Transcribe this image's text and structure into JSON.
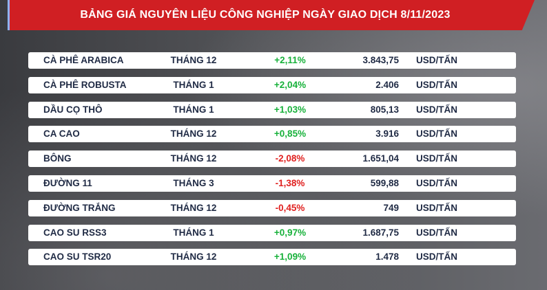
{
  "header": {
    "title": "BẢNG GIÁ NGUYÊN LIỆU CÔNG NGHIỆP NGÀY GIAO DỊCH 8/11/2023"
  },
  "colors": {
    "banner": "#d01f23",
    "positive": "#17b13a",
    "negative": "#e0201f",
    "text": "#1f2a44"
  },
  "rows": [
    {
      "name": "CÀ PHÊ ARABICA",
      "month": "THÁNG 12",
      "change": "+2,11%",
      "direction": "up",
      "price": "3.843,75",
      "unit": "USD/TẤN"
    },
    {
      "name": "CÀ PHÊ ROBUSTA",
      "month": "THÁNG 1",
      "change": "+2,04%",
      "direction": "up",
      "price": "2.406",
      "unit": "USD/TẤN"
    },
    {
      "name": "DẦU CỌ THÔ",
      "month": "THÁNG 1",
      "change": "+1,03%",
      "direction": "up",
      "price": "805,13",
      "unit": "USD/TẤN"
    },
    {
      "name": "CA CAO",
      "month": "THÁNG 12",
      "change": "+0,85%",
      "direction": "up",
      "price": "3.916",
      "unit": "USD/TẤN"
    },
    {
      "name": "BÔNG",
      "month": "THÁNG 12",
      "change": "-2,08%",
      "direction": "down",
      "price": "1.651,04",
      "unit": "USD/TẤN"
    },
    {
      "name": "ĐƯỜNG 11",
      "month": "THÁNG 3",
      "change": "-1,38%",
      "direction": "down",
      "price": "599,88",
      "unit": "USD/TẤN"
    },
    {
      "name": "ĐƯỜNG TRẮNG",
      "month": "THÁNG 12",
      "change": "-0,45%",
      "direction": "down",
      "price": "749",
      "unit": "USD/TẤN"
    },
    {
      "name": "CAO SU RSS3",
      "month": "THÁNG 1",
      "change": "+0,97%",
      "direction": "up",
      "price": "1.687,75",
      "unit": "USD/TẤN"
    },
    {
      "name": "CAO SU TSR20",
      "month": "THÁNG 12",
      "change": "+1,09%",
      "direction": "up",
      "price": "1.478",
      "unit": "USD/TẤN"
    }
  ]
}
